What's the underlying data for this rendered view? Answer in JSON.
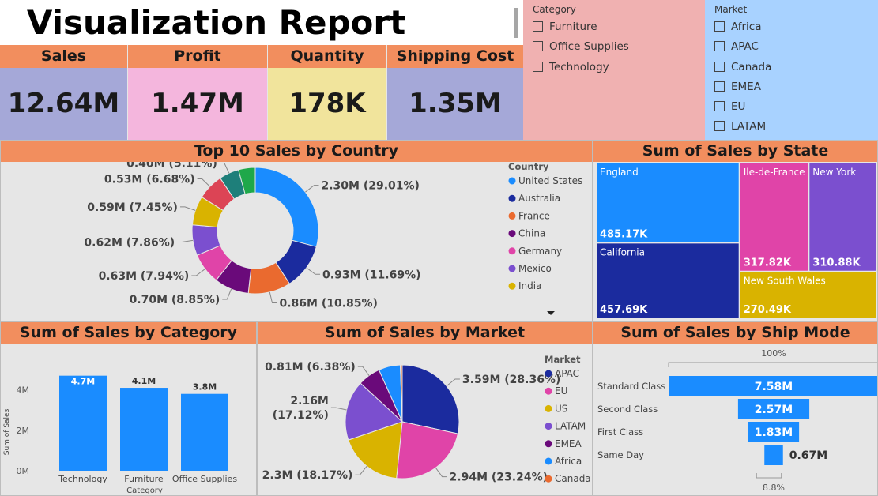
{
  "title": "Visualization Report",
  "kpis": [
    {
      "label": "Sales",
      "value": "12.64M",
      "color": "#a5a8d8"
    },
    {
      "label": "Profit",
      "value": "1.47M",
      "color": "#f4b6dd"
    },
    {
      "label": "Quantity",
      "value": "178K",
      "color": "#f1e49c"
    },
    {
      "label": "Shipping Cost",
      "value": "1.35M",
      "color": "#a5a8d8"
    }
  ],
  "category_slicer": {
    "title": "Category",
    "items": [
      "Furniture",
      "Office Supplies",
      "Technology"
    ]
  },
  "market_slicer": {
    "title": "Market",
    "items": [
      "Africa",
      "APAC",
      "Canada",
      "EMEA",
      "EU",
      "LATAM"
    ]
  },
  "colors": {
    "header": "#f28e5e",
    "panel_bg": "#e6e6e6",
    "bar_blue": "#1a8cff"
  },
  "chart_data": [
    {
      "id": "country",
      "type": "pie",
      "title": "Top 10 Sales by Country",
      "legend_title": "Country",
      "legend": [
        "United States",
        "Australia",
        "France",
        "China",
        "Germany",
        "Mexico",
        "India"
      ],
      "slices": [
        {
          "value": 2.3,
          "label": "2.30M (29.01%)",
          "color": "#1a8cff"
        },
        {
          "value": 0.93,
          "label": "0.93M (11.69%)",
          "color": "#1b2b9e"
        },
        {
          "value": 0.86,
          "label": "0.86M (10.85%)",
          "color": "#ea6a2f"
        },
        {
          "value": 0.7,
          "label": "0.70M (8.85%)",
          "color": "#6a0a7a"
        },
        {
          "value": 0.63,
          "label": "0.63M (7.94%)",
          "color": "#e044a8"
        },
        {
          "value": 0.62,
          "label": "0.62M (7.86%)",
          "color": "#7b4fcf"
        },
        {
          "value": 0.59,
          "label": "0.59M (7.45%)",
          "color": "#d9b300"
        },
        {
          "value": 0.53,
          "label": "0.53M (6.68%)",
          "color": "#dc4455"
        },
        {
          "value": 0.4,
          "label": "0.40M (5.11%)",
          "color": "#1e7f7a"
        },
        {
          "value": 0.34,
          "label": "",
          "color": "#1fa84a"
        }
      ]
    },
    {
      "id": "state",
      "type": "treemap",
      "title": "Sum of Sales by State",
      "items": [
        {
          "name": "England",
          "value": 485.17,
          "label": "485.17K",
          "color": "#1a8cff"
        },
        {
          "name": "California",
          "value": 457.69,
          "label": "457.69K",
          "color": "#1b2b9e"
        },
        {
          "name": "Ile-de-France",
          "value": 317.82,
          "label": "317.82K",
          "color": "#e044a8"
        },
        {
          "name": "New York",
          "value": 310.88,
          "label": "310.88K",
          "color": "#7b4fcf"
        },
        {
          "name": "New South Wales",
          "value": 270.49,
          "label": "270.49K",
          "color": "#d9b300"
        }
      ]
    },
    {
      "id": "category",
      "type": "bar",
      "title": "Sum of Sales by Category",
      "categories": [
        "Technology",
        "Furniture",
        "Office Supplies"
      ],
      "values": [
        4.7,
        4.1,
        3.8
      ],
      "value_labels": [
        "4.7M",
        "4.1M",
        "3.8M"
      ],
      "xlabel": "Category",
      "ylabel": "Sum of Sales",
      "yticks": [
        "0M",
        "2M",
        "4M"
      ],
      "ylim": [
        0,
        5
      ]
    },
    {
      "id": "market",
      "type": "pie",
      "title": "Sum of Sales by Market",
      "legend_title": "Market",
      "legend": [
        "APAC",
        "EU",
        "US",
        "LATAM",
        "EMEA",
        "Africa",
        "Canada"
      ],
      "slices": [
        {
          "value": 3.59,
          "label": "3.59M (28.36%)",
          "color": "#1b2b9e"
        },
        {
          "value": 2.94,
          "label": "2.94M (23.24%)",
          "color": "#e044a8"
        },
        {
          "value": 2.3,
          "label": "2.3M (18.17%)",
          "color": "#d9b300"
        },
        {
          "value": 2.16,
          "label": "2.16M (17.12%)",
          "color": "#7b4fcf"
        },
        {
          "value": 0.81,
          "label": "0.81M (6.38%)",
          "color": "#6a0a7a"
        },
        {
          "value": 0.78,
          "label": "",
          "color": "#1a8cff"
        },
        {
          "value": 0.07,
          "label": "",
          "color": "#ea6a2f"
        }
      ]
    },
    {
      "id": "shipmode",
      "type": "funnel",
      "title": "Sum of Sales by Ship Mode",
      "top_label": "100%",
      "bottom_label": "8.8%",
      "categories": [
        "Standard Class",
        "Second Class",
        "First Class",
        "Same Day"
      ],
      "values": [
        7.58,
        2.57,
        1.83,
        0.67
      ],
      "value_labels": [
        "7.58M",
        "2.57M",
        "1.83M",
        "0.67M"
      ]
    }
  ]
}
